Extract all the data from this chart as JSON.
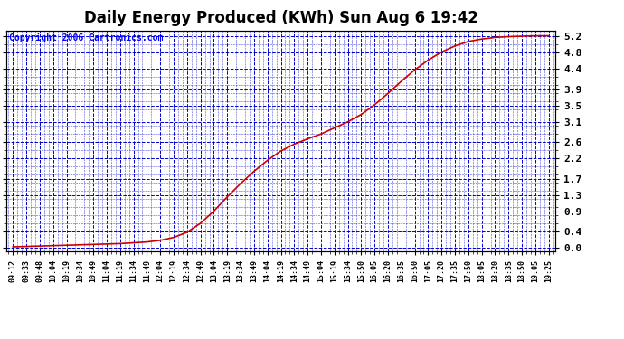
{
  "title": "Daily Energy Produced (KWh) Sun Aug 6 19:42",
  "copyright_text": "Copyright 2006 Cartronics.com",
  "yticks": [
    0.0,
    0.4,
    0.9,
    1.3,
    1.7,
    2.2,
    2.6,
    3.1,
    3.5,
    3.9,
    4.4,
    4.8,
    5.2
  ],
  "ymax": 5.35,
  "ymin": -0.08,
  "line_color": "#cc0000",
  "grid_color": "#0000cc",
  "bg_color": "#ffffff",
  "plot_bg_color": "#ffffff",
  "title_fontsize": 12,
  "copyright_fontsize": 7,
  "xtick_labels": [
    "09:12",
    "09:33",
    "09:48",
    "10:04",
    "10:19",
    "10:34",
    "10:49",
    "11:04",
    "11:19",
    "11:34",
    "11:49",
    "12:04",
    "12:19",
    "12:34",
    "12:49",
    "13:04",
    "13:19",
    "13:34",
    "13:49",
    "14:04",
    "14:19",
    "14:34",
    "14:49",
    "15:04",
    "15:19",
    "15:34",
    "15:50",
    "16:05",
    "16:20",
    "16:35",
    "16:50",
    "17:05",
    "17:20",
    "17:35",
    "17:50",
    "18:05",
    "18:20",
    "18:35",
    "18:50",
    "19:05",
    "19:25"
  ],
  "curve_y": [
    0.02,
    0.03,
    0.04,
    0.05,
    0.06,
    0.07,
    0.08,
    0.09,
    0.1,
    0.12,
    0.14,
    0.18,
    0.25,
    0.38,
    0.6,
    0.9,
    1.25,
    1.58,
    1.88,
    2.15,
    2.38,
    2.55,
    2.68,
    2.8,
    2.95,
    3.1,
    3.28,
    3.52,
    3.8,
    4.1,
    4.38,
    4.62,
    4.82,
    4.97,
    5.08,
    5.14,
    5.18,
    5.2,
    5.21,
    5.22,
    5.22
  ]
}
